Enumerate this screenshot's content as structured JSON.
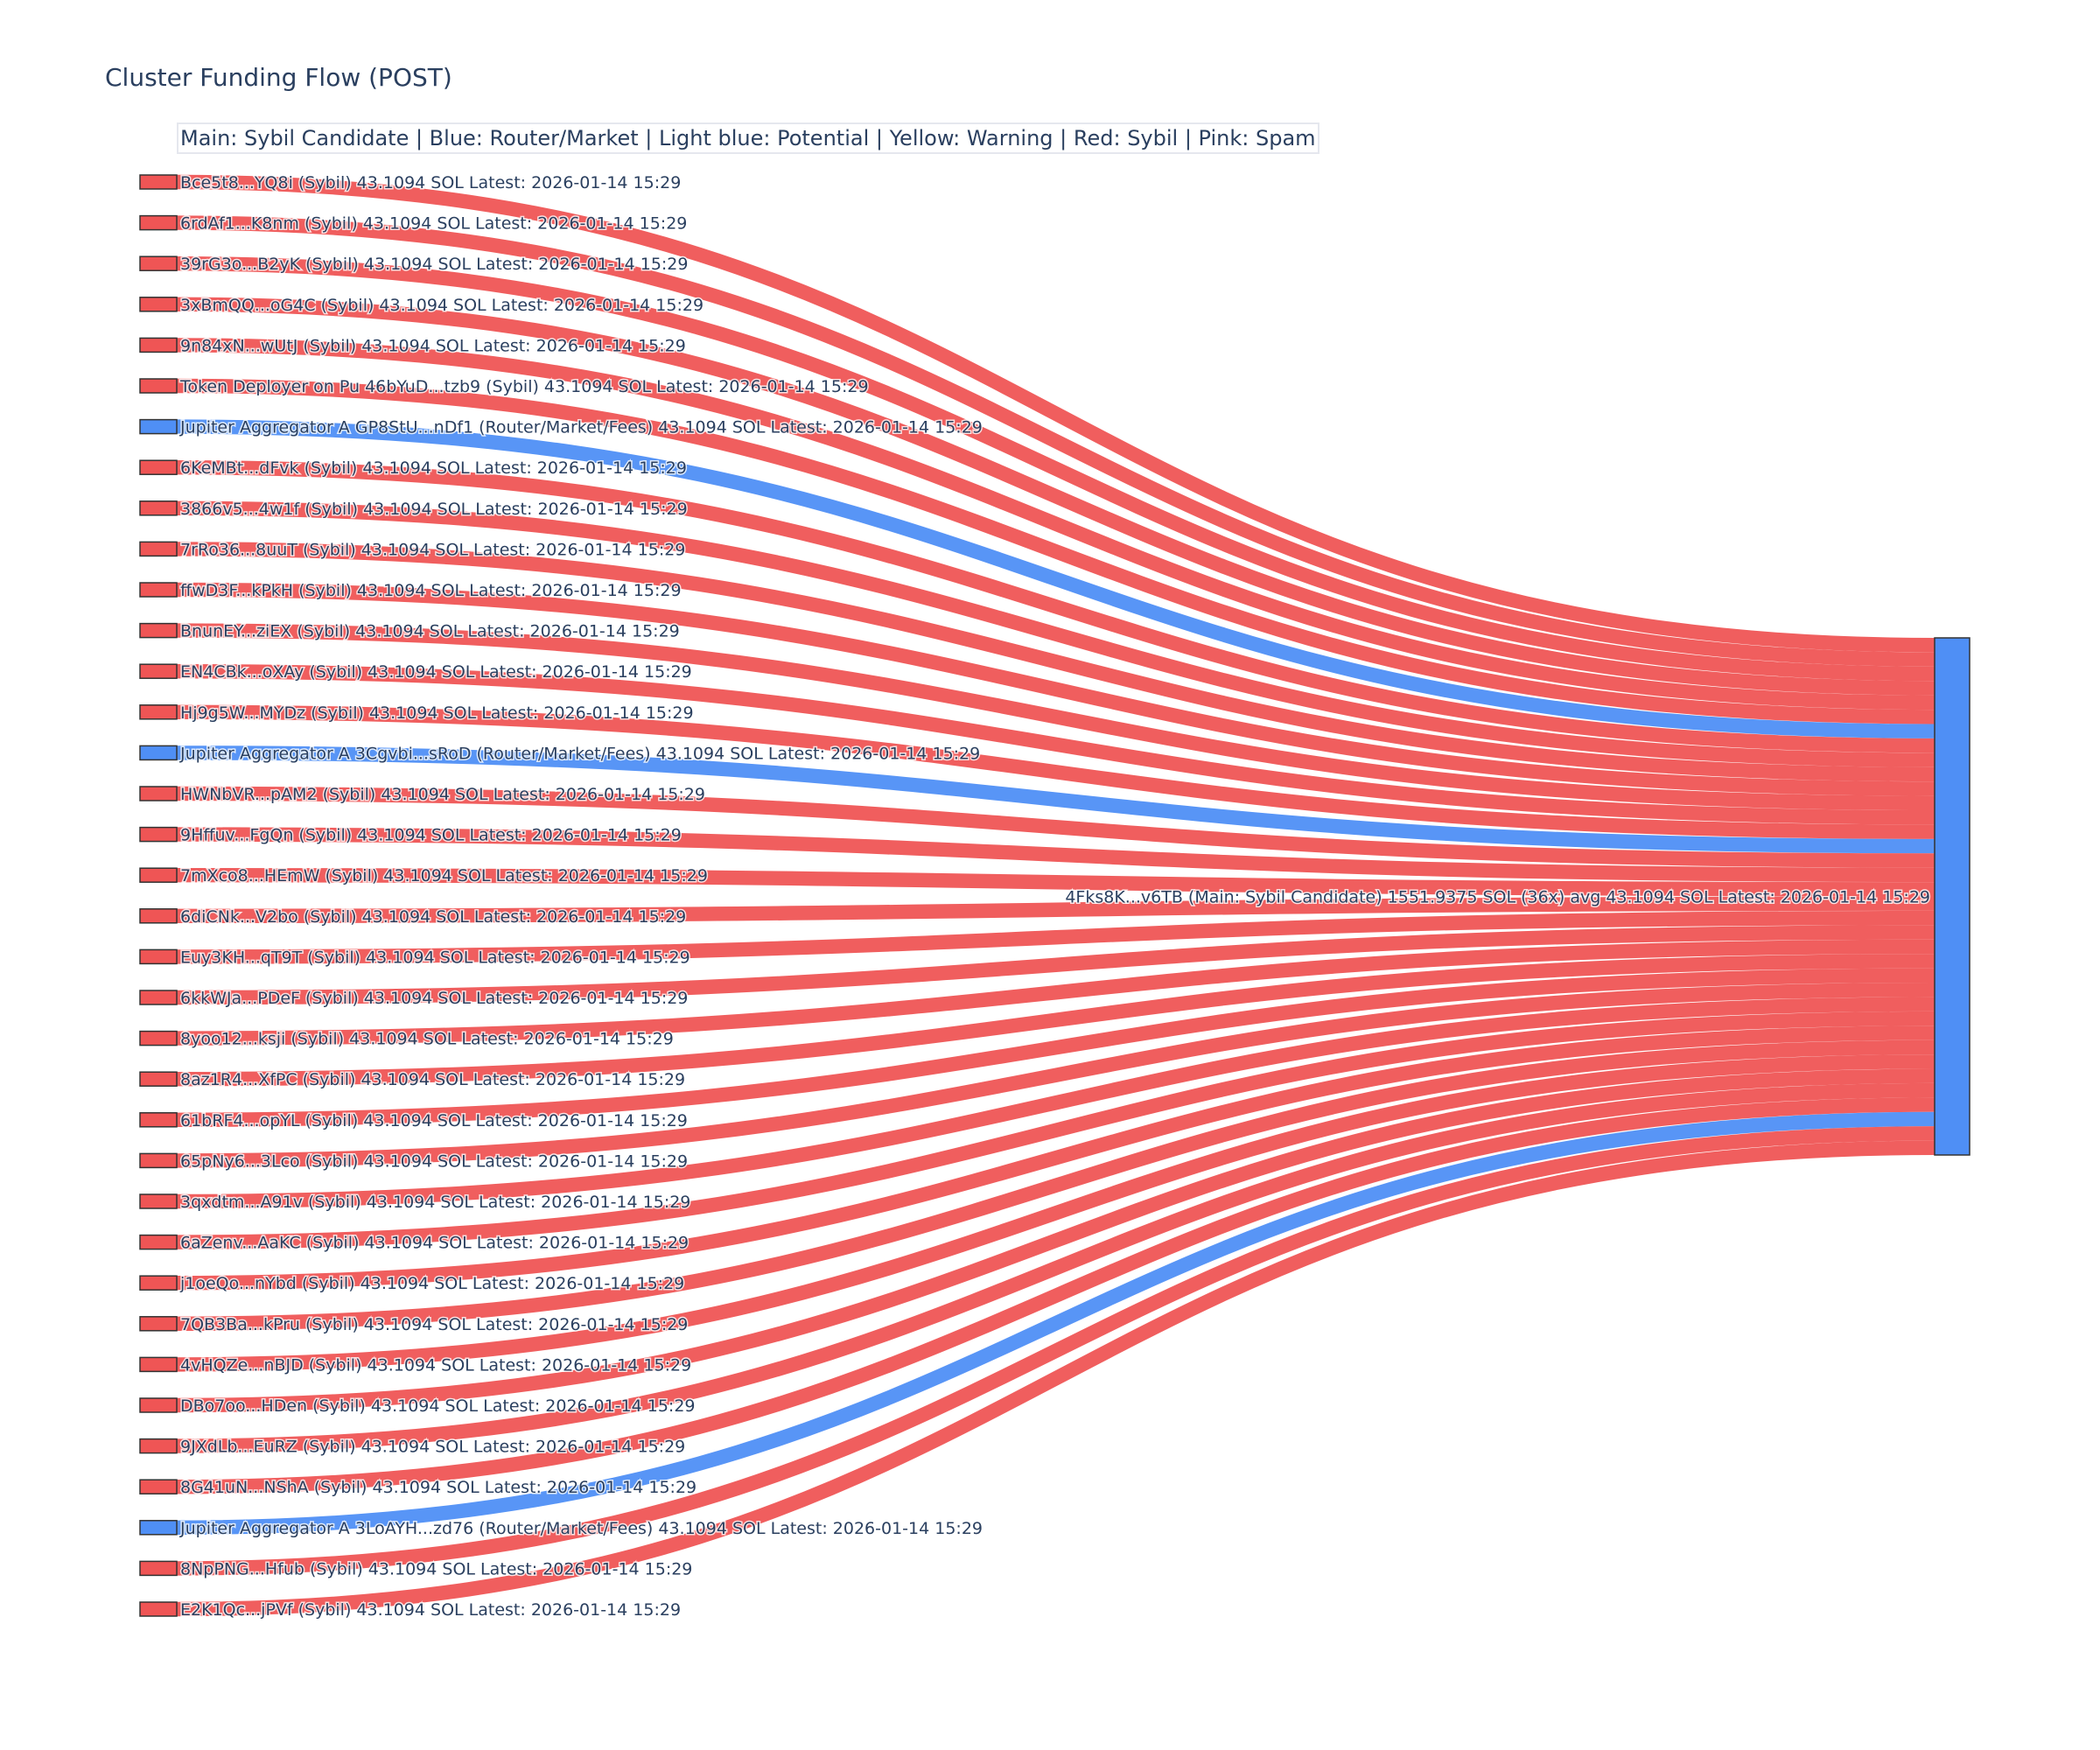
{
  "chart_data": {
    "type": "sankey",
    "title": "Cluster Funding Flow (POST)",
    "legend_text": "Main: Sybil Candidate  |  Blue: Router/Market | Light blue: Potential | Yellow: Warning | Red: Sybil | Pink: Spam",
    "colors": {
      "sybil": "#ef5555",
      "router": "#4f8ff5",
      "main": "#4f8ff5",
      "link_sybil": "#ef5555",
      "link_router": "#4f8ff5"
    },
    "target": {
      "label": "4Fks8K...v6TB (Main: Sybil Candidate) 1551.9375 SOL (36x) avg 43.1094 SOL Latest: 2026-01-14 15:29",
      "type": "main",
      "total": 1551.9375
    },
    "sources": [
      {
        "label": "Bce5t8...YQ8i (Sybil) 43.1094 SOL Latest: 2026-01-14 15:29",
        "type": "sybil",
        "value": 43.1094
      },
      {
        "label": "6rdAf1...K8nm (Sybil) 43.1094 SOL Latest: 2026-01-14 15:29",
        "type": "sybil",
        "value": 43.1094
      },
      {
        "label": "39rG3o...B2yK (Sybil) 43.1094 SOL Latest: 2026-01-14 15:29",
        "type": "sybil",
        "value": 43.1094
      },
      {
        "label": "3xBmQQ...oG4C (Sybil) 43.1094 SOL Latest: 2026-01-14 15:29",
        "type": "sybil",
        "value": 43.1094
      },
      {
        "label": "9n84xN...wUtJ (Sybil) 43.1094 SOL Latest: 2026-01-14 15:29",
        "type": "sybil",
        "value": 43.1094
      },
      {
        "label": "Token Deployer on Pu 46bYuD...tzb9 (Sybil) 43.1094 SOL Latest: 2026-01-14 15:29",
        "type": "sybil",
        "value": 43.1094
      },
      {
        "label": "Jupiter Aggregator A GP8StU...nDf1 (Router/Market/Fees) 43.1094 SOL Latest: 2026-01-14 15:29",
        "type": "router",
        "value": 43.1094
      },
      {
        "label": "6KeMBt...dFvk (Sybil) 43.1094 SOL Latest: 2026-01-14 15:29",
        "type": "sybil",
        "value": 43.1094
      },
      {
        "label": "3866v5...4w1f (Sybil) 43.1094 SOL Latest: 2026-01-14 15:29",
        "type": "sybil",
        "value": 43.1094
      },
      {
        "label": "7rRo36...8uuT (Sybil) 43.1094 SOL Latest: 2026-01-14 15:29",
        "type": "sybil",
        "value": 43.1094
      },
      {
        "label": "ffwD3F...kPkH (Sybil) 43.1094 SOL Latest: 2026-01-14 15:29",
        "type": "sybil",
        "value": 43.1094
      },
      {
        "label": "BnunEY...ziEX (Sybil) 43.1094 SOL Latest: 2026-01-14 15:29",
        "type": "sybil",
        "value": 43.1094
      },
      {
        "label": "EN4CBk...oXAy (Sybil) 43.1094 SOL Latest: 2026-01-14 15:29",
        "type": "sybil",
        "value": 43.1094
      },
      {
        "label": "Hj9g5W...MYDz (Sybil) 43.1094 SOL Latest: 2026-01-14 15:29",
        "type": "sybil",
        "value": 43.1094
      },
      {
        "label": "Jupiter Aggregator A 3Cgvbi...sRoD (Router/Market/Fees) 43.1094 SOL Latest: 2026-01-14 15:29",
        "type": "router",
        "value": 43.1094
      },
      {
        "label": "HWNbVR...pAM2 (Sybil) 43.1094 SOL Latest: 2026-01-14 15:29",
        "type": "sybil",
        "value": 43.1094
      },
      {
        "label": "9Hffuv...FgQn (Sybil) 43.1094 SOL Latest: 2026-01-14 15:29",
        "type": "sybil",
        "value": 43.1094
      },
      {
        "label": "7mXco8...HEmW (Sybil) 43.1094 SOL Latest: 2026-01-14 15:29",
        "type": "sybil",
        "value": 43.1094
      },
      {
        "label": "6diCNk...V2bo (Sybil) 43.1094 SOL Latest: 2026-01-14 15:29",
        "type": "sybil",
        "value": 43.1094
      },
      {
        "label": "Euy3KH...qT9T (Sybil) 43.1094 SOL Latest: 2026-01-14 15:29",
        "type": "sybil",
        "value": 43.1094
      },
      {
        "label": "6kkWJa...PDeF (Sybil) 43.1094 SOL Latest: 2026-01-14 15:29",
        "type": "sybil",
        "value": 43.1094
      },
      {
        "label": "8yoo12...ksji (Sybil) 43.1094 SOL Latest: 2026-01-14 15:29",
        "type": "sybil",
        "value": 43.1094
      },
      {
        "label": "8az1R4...XfPC (Sybil) 43.1094 SOL Latest: 2026-01-14 15:29",
        "type": "sybil",
        "value": 43.1094
      },
      {
        "label": "61bRF4...opYL (Sybil) 43.1094 SOL Latest: 2026-01-14 15:29",
        "type": "sybil",
        "value": 43.1094
      },
      {
        "label": "65pNy6...3Lco (Sybil) 43.1094 SOL Latest: 2026-01-14 15:29",
        "type": "sybil",
        "value": 43.1094
      },
      {
        "label": "3qxdtm...A91v (Sybil) 43.1094 SOL Latest: 2026-01-14 15:29",
        "type": "sybil",
        "value": 43.1094
      },
      {
        "label": "6aZenv...AaKC (Sybil) 43.1094 SOL Latest: 2026-01-14 15:29",
        "type": "sybil",
        "value": 43.1094
      },
      {
        "label": "j1oeQo...nYbd (Sybil) 43.1094 SOL Latest: 2026-01-14 15:29",
        "type": "sybil",
        "value": 43.1094
      },
      {
        "label": "7QB3Ba...kPru (Sybil) 43.1094 SOL Latest: 2026-01-14 15:29",
        "type": "sybil",
        "value": 43.1094
      },
      {
        "label": "4vHQZe...nBJD (Sybil) 43.1094 SOL Latest: 2026-01-14 15:29",
        "type": "sybil",
        "value": 43.1094
      },
      {
        "label": "DBo7oo...HDen (Sybil) 43.1094 SOL Latest: 2026-01-14 15:29",
        "type": "sybil",
        "value": 43.1094
      },
      {
        "label": "9JXdLb...EuRZ (Sybil) 43.1094 SOL Latest: 2026-01-14 15:29",
        "type": "sybil",
        "value": 43.1094
      },
      {
        "label": "8G41uN...NShA (Sybil) 43.1094 SOL Latest: 2026-01-14 15:29",
        "type": "sybil",
        "value": 43.1094
      },
      {
        "label": "Jupiter Aggregator A 3LoAYH...zd76 (Router/Market/Fees) 43.1094 SOL Latest: 2026-01-14 15:29",
        "type": "router",
        "value": 43.1094
      },
      {
        "label": "8NpPNG...Hfub (Sybil) 43.1094 SOL Latest: 2026-01-14 15:29",
        "type": "sybil",
        "value": 43.1094
      },
      {
        "label": "E2K1Qc...jPVf (Sybil) 43.1094 SOL Latest: 2026-01-14 15:29",
        "type": "sybil",
        "value": 43.1094
      }
    ]
  }
}
